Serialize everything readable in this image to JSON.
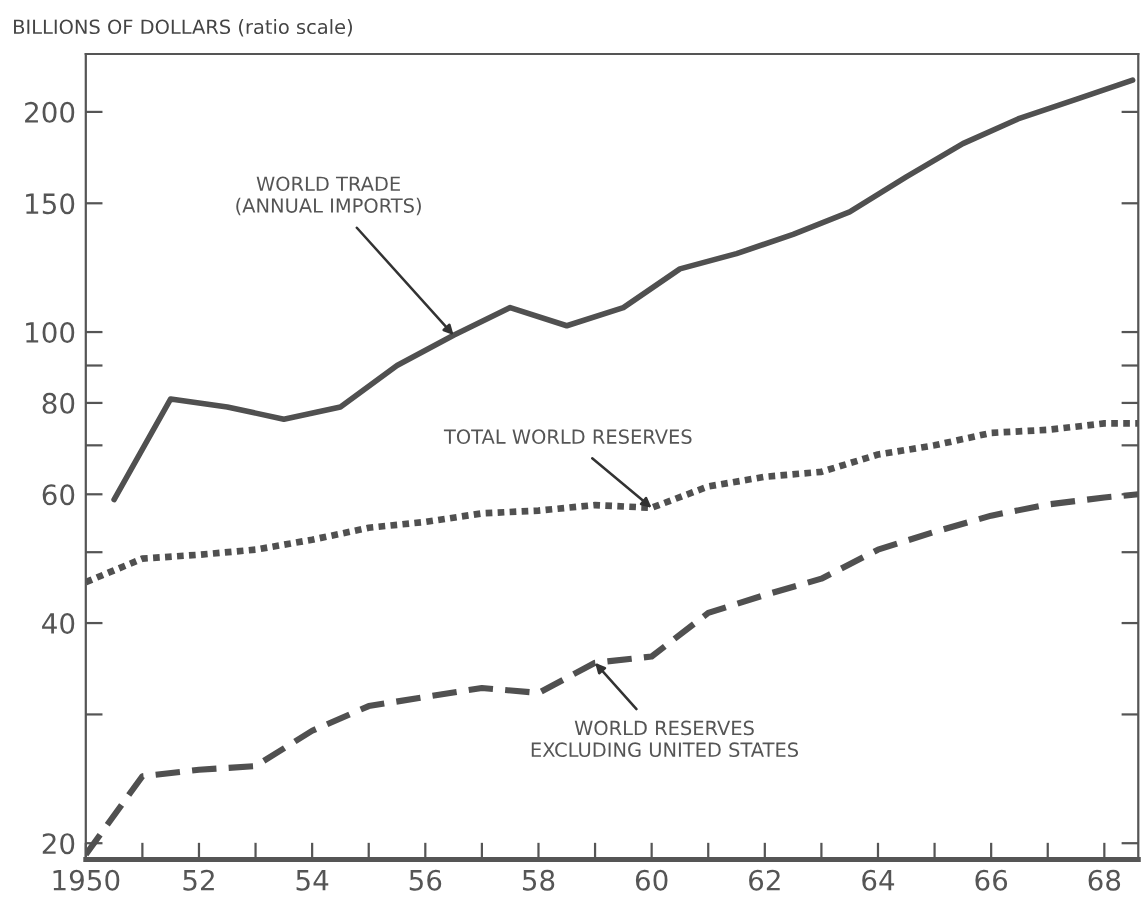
{
  "chart_data": {
    "type": "line",
    "ylabel": "BILLIONS OF DOLLARS (ratio scale)",
    "log": "y",
    "grid": false,
    "xlim": [
      1950,
      1968.6
    ],
    "ylim": [
      19,
      240
    ],
    "xticks": [
      {
        "value": 1950,
        "label": "1950"
      },
      {
        "value": 1951,
        "label": null
      },
      {
        "value": 1952,
        "label": "52"
      },
      {
        "value": 1953,
        "label": null
      },
      {
        "value": 1954,
        "label": "54"
      },
      {
        "value": 1955,
        "label": null
      },
      {
        "value": 1956,
        "label": "56"
      },
      {
        "value": 1957,
        "label": null
      },
      {
        "value": 1958,
        "label": "58"
      },
      {
        "value": 1959,
        "label": null
      },
      {
        "value": 1960,
        "label": "60"
      },
      {
        "value": 1961,
        "label": null
      },
      {
        "value": 1962,
        "label": "62"
      },
      {
        "value": 1963,
        "label": null
      },
      {
        "value": 1964,
        "label": "64"
      },
      {
        "value": 1965,
        "label": null
      },
      {
        "value": 1966,
        "label": "66"
      },
      {
        "value": 1967,
        "label": null
      },
      {
        "value": 1968,
        "label": "68"
      }
    ],
    "yticks": [
      20,
      {
        "value": 30,
        "label": null
      },
      40,
      {
        "value": 50,
        "label": null
      },
      60,
      {
        "value": 70,
        "label": null
      },
      80,
      {
        "value": 90,
        "label": null
      },
      100,
      150,
      200
    ],
    "series": [
      {
        "color": "#505050",
        "line_style": "solid",
        "x": [
          1950.5,
          1951.5,
          1952.5,
          1953.5,
          1954.5,
          1955.5,
          1956.5,
          1957.5,
          1958.5,
          1959.5,
          1960.5,
          1961.5,
          1962.5,
          1963.5,
          1964.5,
          1965.5,
          1966.5,
          1967.5,
          1968.5
        ],
        "values": [
          59,
          81,
          79,
          76,
          79,
          90,
          99,
          108,
          102,
          108,
          122,
          128,
          136,
          146,
          163,
          181,
          196,
          208,
          221
        ]
      },
      {
        "color": "#505050",
        "line_style": "dotted",
        "x": [
          1950,
          1951,
          1952,
          1953,
          1954,
          1955,
          1956,
          1957,
          1958,
          1959,
          1960,
          1961,
          1962,
          1963,
          1964,
          1965,
          1966,
          1967,
          1968,
          1968.6
        ],
        "values": [
          45.5,
          49,
          49.6,
          50.4,
          52,
          54,
          55,
          56.5,
          57,
          58,
          57.5,
          61.5,
          63.4,
          64.4,
          68,
          70,
          72.8,
          73.5,
          75,
          75
        ]
      },
      {
        "color": "#505050",
        "line_style": "dashed",
        "x": [
          1950,
          1951,
          1952,
          1953,
          1954,
          1955,
          1956,
          1957,
          1958,
          1959,
          1960,
          1961,
          1962,
          1963,
          1964,
          1965,
          1966,
          1967,
          1968,
          1968.6
        ],
        "values": [
          19.3,
          24.7,
          25.2,
          25.5,
          28.5,
          30.8,
          31.7,
          32.6,
          32.1,
          35.3,
          36,
          41.3,
          43.7,
          46,
          50.4,
          53.3,
          56.1,
          58.1,
          59.4,
          60
        ]
      }
    ],
    "annotations": [
      {
        "text": "WORLD TRADE\n(ANNUAL IMPORTS)",
        "x": 1956.5,
        "y": 99
      },
      {
        "text": "TOTAL WORLD RESERVES",
        "x": 1960,
        "y": 57.5
      },
      {
        "text": "WORLD RESERVES\nEXCLUDING UNITED STATES",
        "x": 1959,
        "y": 35.3
      }
    ]
  }
}
